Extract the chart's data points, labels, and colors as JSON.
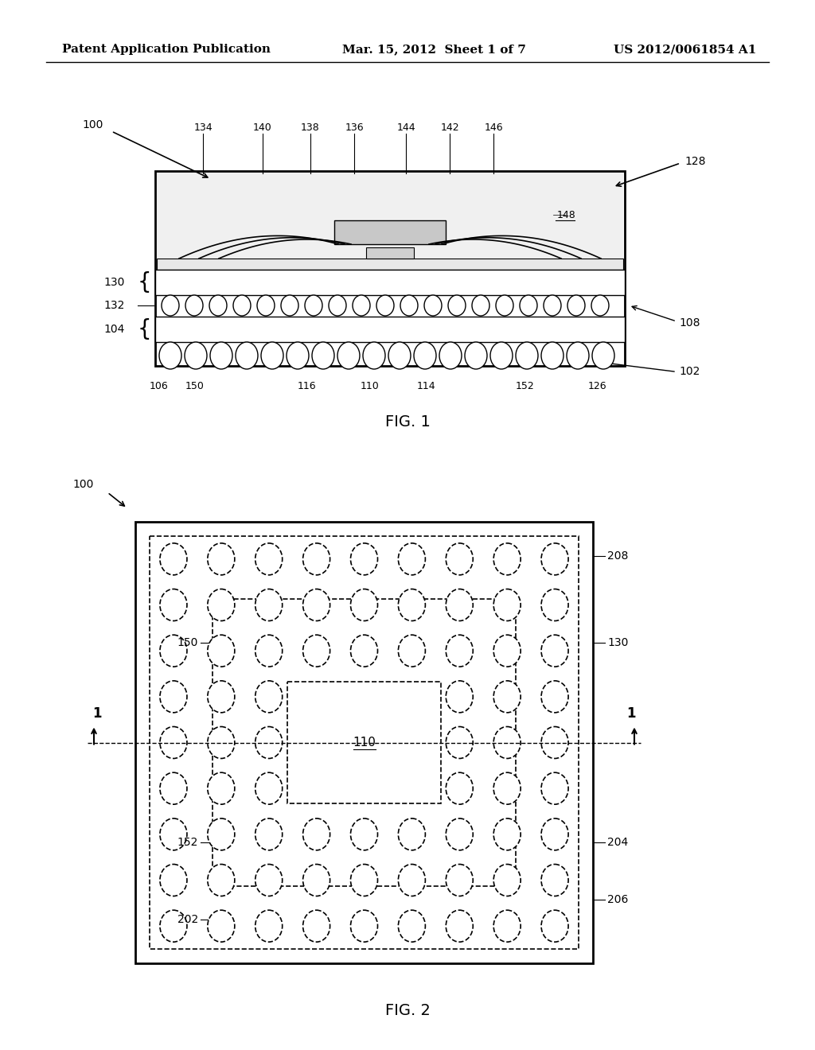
{
  "header_left": "Patent Application Publication",
  "header_mid": "Mar. 15, 2012  Sheet 1 of 7",
  "header_right": "US 2012/0061854 A1",
  "fig1_caption": "FIG. 1",
  "fig2_caption": "FIG. 2",
  "bg_color": "#ffffff",
  "line_color": "#000000",
  "gray_light": "#d0d0d0",
  "gray_mid": "#a0a0a0",
  "gray_dark": "#606060"
}
